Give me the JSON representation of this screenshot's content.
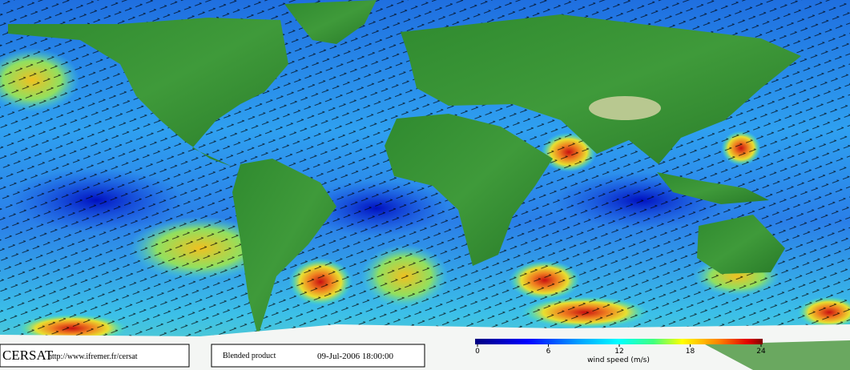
{
  "footer": {
    "logo": "CERSAT",
    "url": "http://www.ifremer.fr/cersat",
    "product": "Blended product",
    "date": "09-Jul-2006 18:00:00"
  },
  "colorbar": {
    "label": "wind speed (m/s)",
    "lim": [
      0,
      24
    ],
    "ticks": [
      0,
      6,
      12,
      18,
      24
    ]
  }
}
